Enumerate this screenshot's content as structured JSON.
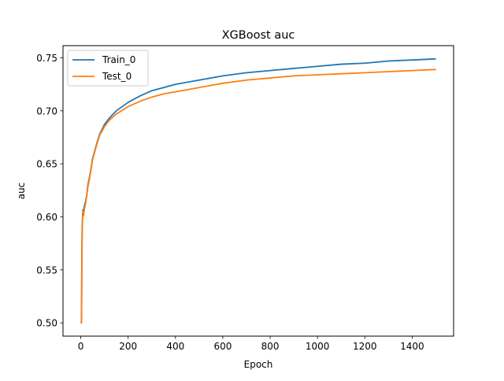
{
  "chart_data": {
    "type": "line",
    "title": "XGBoost auc",
    "xlabel": "Epoch",
    "ylabel": "auc",
    "xlim": [
      -75,
      1575
    ],
    "ylim": [
      0.4875,
      0.7615
    ],
    "xticks": [
      0,
      200,
      400,
      600,
      800,
      1000,
      1200,
      1400
    ],
    "xtick_labels": [
      "0",
      "200",
      "400",
      "600",
      "800",
      "1000",
      "1200",
      "1400"
    ],
    "yticks": [
      0.5,
      0.55,
      0.6,
      0.65,
      0.7,
      0.75
    ],
    "ytick_labels": [
      "0.50",
      "0.55",
      "0.60",
      "0.65",
      "0.70",
      "0.75"
    ],
    "grid": false,
    "legend_position": "upper-left",
    "series": [
      {
        "name": "Train_0",
        "color": "#1f77b4",
        "x": [
          0,
          3,
          5,
          6,
          8,
          10,
          12,
          15,
          20,
          25,
          30,
          40,
          50,
          60,
          70,
          80,
          100,
          120,
          150,
          200,
          250,
          300,
          350,
          400,
          500,
          600,
          700,
          800,
          900,
          1000,
          1100,
          1200,
          1300,
          1400,
          1500
        ],
        "y": [
          0.5,
          0.501,
          0.57,
          0.59,
          0.603,
          0.607,
          0.604,
          0.61,
          0.614,
          0.62,
          0.63,
          0.641,
          0.655,
          0.663,
          0.671,
          0.678,
          0.687,
          0.693,
          0.7,
          0.708,
          0.714,
          0.719,
          0.722,
          0.725,
          0.729,
          0.733,
          0.736,
          0.738,
          0.74,
          0.742,
          0.744,
          0.745,
          0.747,
          0.748,
          0.749
        ]
      },
      {
        "name": "Test_0",
        "color": "#ff7f0e",
        "x": [
          0,
          3,
          5,
          6,
          8,
          10,
          12,
          15,
          20,
          25,
          30,
          40,
          50,
          60,
          70,
          80,
          100,
          120,
          150,
          200,
          250,
          300,
          350,
          400,
          500,
          600,
          700,
          800,
          900,
          1000,
          1100,
          1200,
          1300,
          1400,
          1500
        ],
        "y": [
          0.5,
          0.5,
          0.565,
          0.588,
          0.6,
          0.605,
          0.601,
          0.607,
          0.612,
          0.619,
          0.628,
          0.64,
          0.654,
          0.662,
          0.67,
          0.677,
          0.685,
          0.691,
          0.697,
          0.704,
          0.709,
          0.713,
          0.716,
          0.718,
          0.722,
          0.726,
          0.729,
          0.731,
          0.733,
          0.734,
          0.735,
          0.736,
          0.737,
          0.738,
          0.739
        ]
      }
    ]
  }
}
